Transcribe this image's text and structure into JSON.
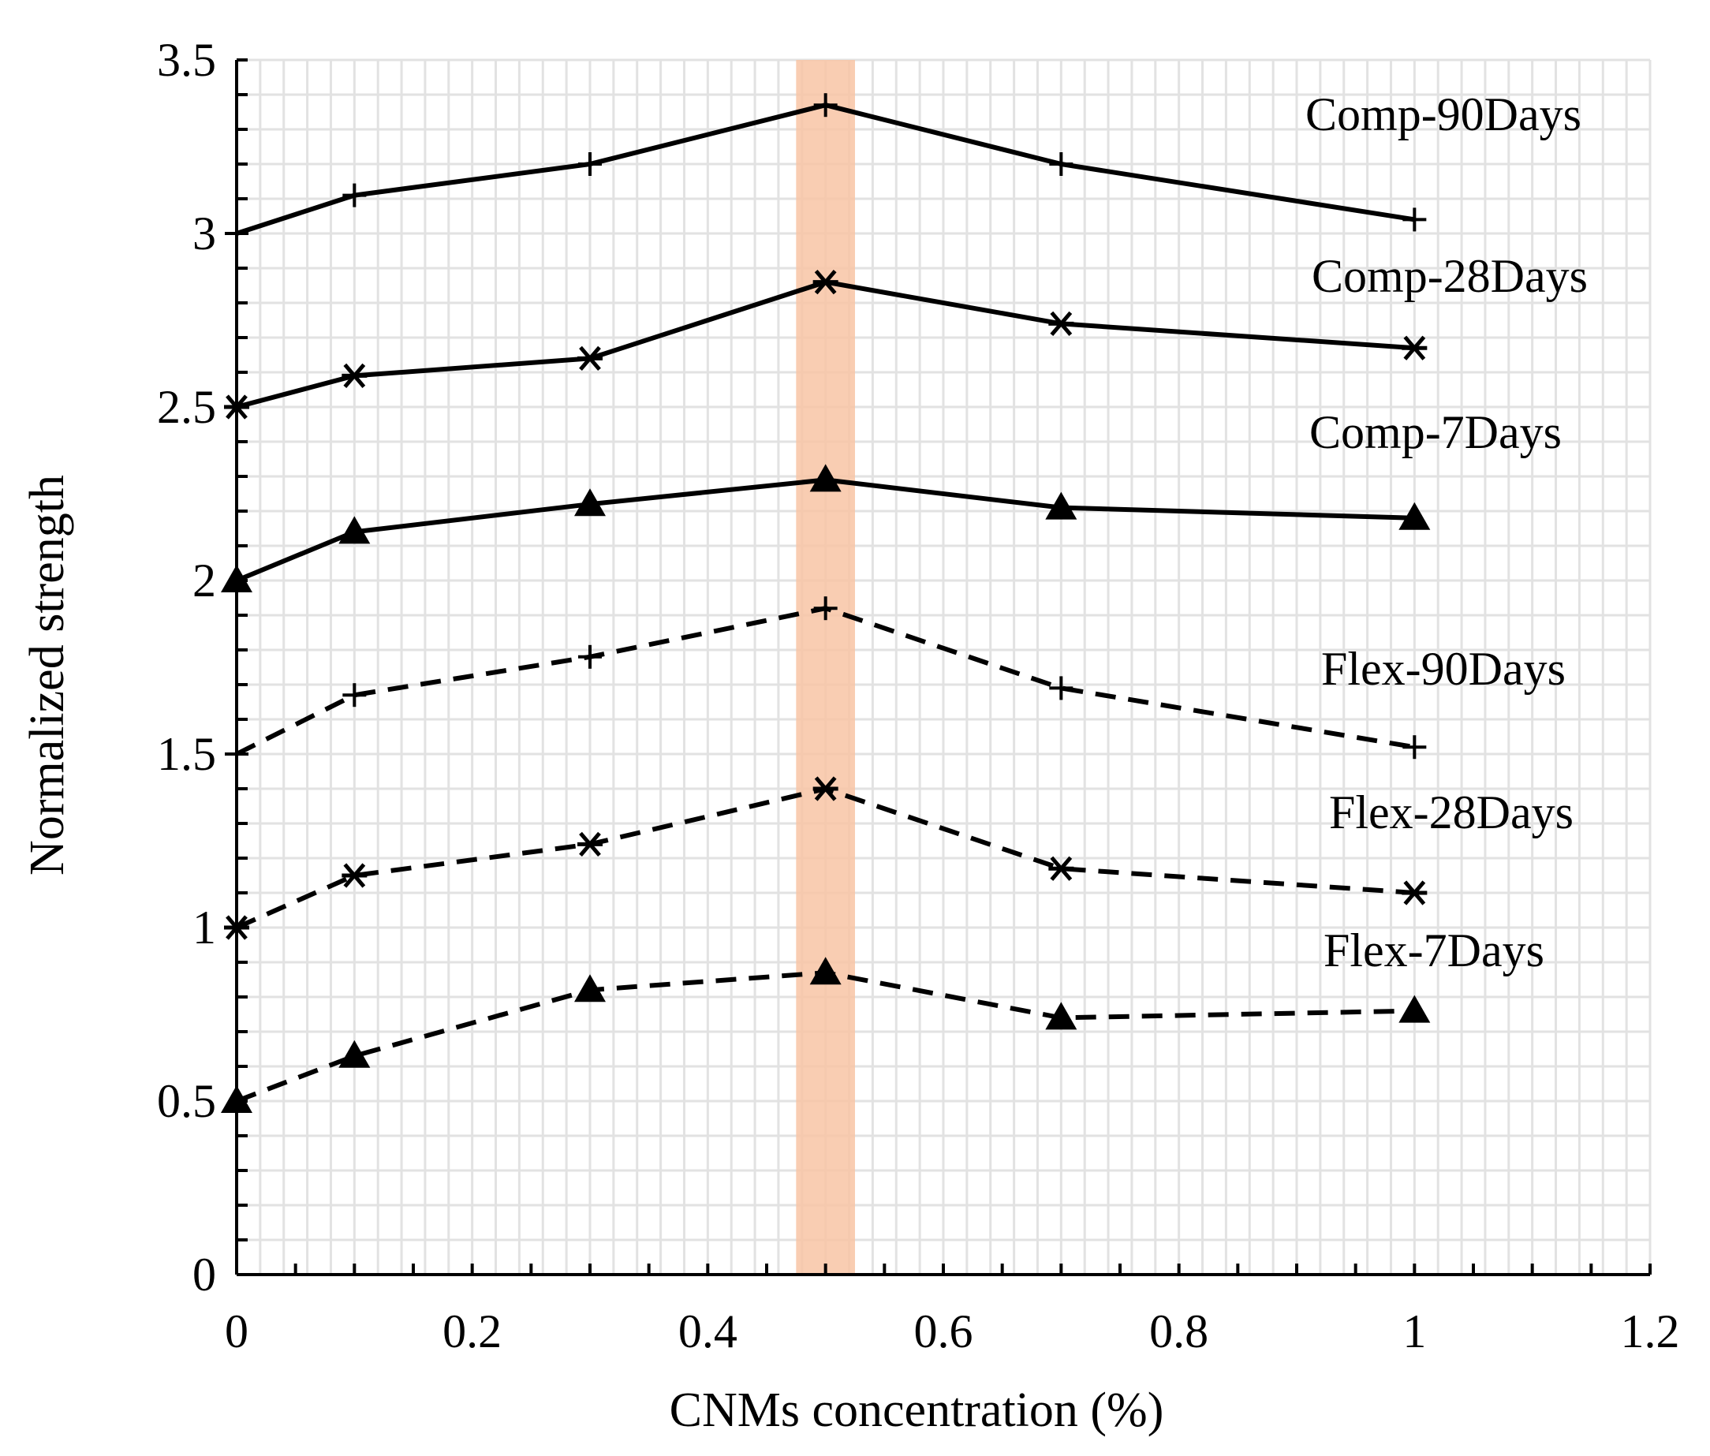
{
  "chart_data": {
    "type": "line",
    "xlabel": "CNMs concentration (%)",
    "ylabel": "Normalized strength",
    "xlim": [
      0,
      1.2
    ],
    "ylim": [
      0,
      3.5
    ],
    "x_ticks": [
      "0",
      "0.2",
      "0.4",
      "0.6",
      "0.8",
      "1",
      "1.2"
    ],
    "y_ticks": [
      "0",
      "0.5",
      "1",
      "1.5",
      "2",
      "2.5",
      "3",
      "3.5"
    ],
    "grid": true,
    "highlight_band": {
      "x_from": 0.475,
      "x_to": 0.525,
      "color": "#f8c4a4"
    },
    "x": [
      0,
      0.1,
      0.3,
      0.5,
      0.7,
      1
    ],
    "series": [
      {
        "name": "Comp-90Days",
        "values": [
          3.0,
          3.11,
          3.2,
          3.37,
          3.2,
          3.04
        ],
        "line": "solid",
        "marker": "plus"
      },
      {
        "name": "Comp-28Days",
        "values": [
          2.5,
          2.59,
          2.64,
          2.86,
          2.74,
          2.67
        ],
        "line": "solid",
        "marker": "star"
      },
      {
        "name": "Comp-7Days",
        "values": [
          2.0,
          2.14,
          2.22,
          2.29,
          2.21,
          2.18
        ],
        "line": "solid",
        "marker": "triangle"
      },
      {
        "name": "Flex-90Days",
        "values": [
          1.5,
          1.67,
          1.78,
          1.92,
          1.69,
          1.52
        ],
        "line": "dashed",
        "marker": "plus"
      },
      {
        "name": "Flex-28Days",
        "values": [
          1.0,
          1.15,
          1.24,
          1.4,
          1.17,
          1.1
        ],
        "line": "dashed",
        "marker": "star"
      },
      {
        "name": "Flex-7Days",
        "values": [
          0.5,
          0.63,
          0.82,
          0.87,
          0.74,
          0.76
        ],
        "line": "dashed",
        "marker": "triangle"
      }
    ],
    "colors": {
      "line": "#000000",
      "grid": "#e2e2e2",
      "band": "#f8c4a4"
    }
  }
}
